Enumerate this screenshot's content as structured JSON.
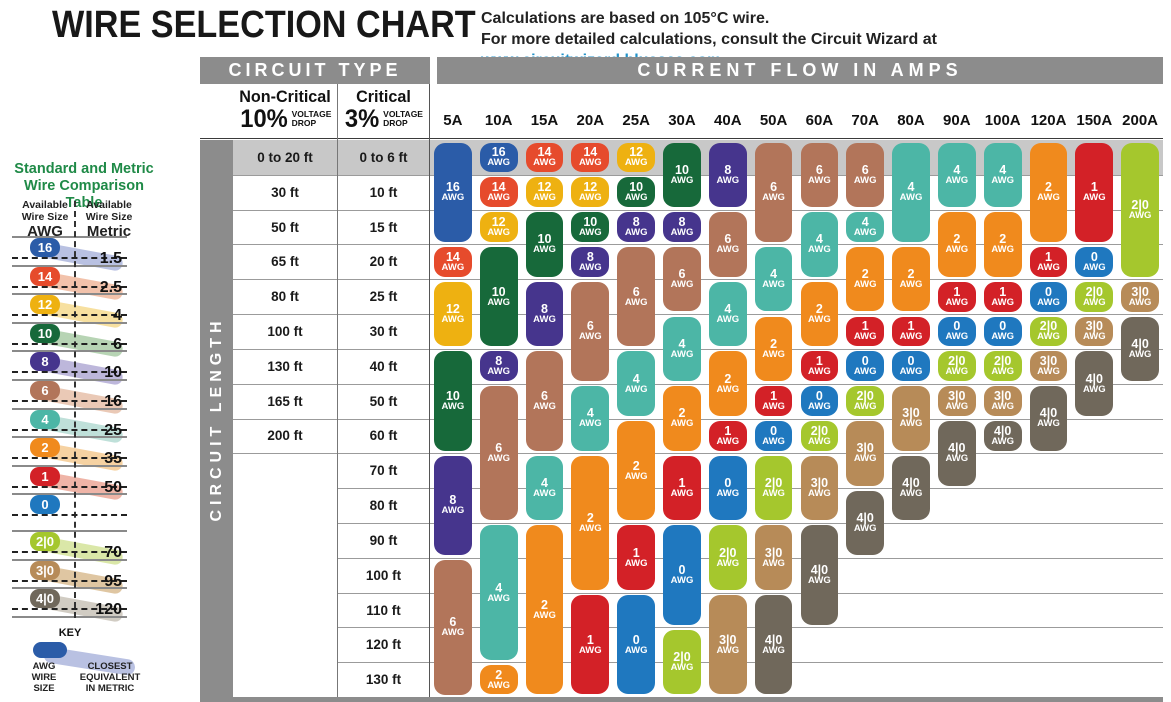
{
  "header": {
    "title": "WIRE SELECTION CHART",
    "note_line1": "Calculations are based on 105°C wire.",
    "note_line2": "For more detailed calculations, consult the Circuit Wizard at ",
    "link_text": "www.circuitwizard.bluesea.com",
    "link_color": "#2292c8"
  },
  "circuit_type": {
    "label": "CIRCUIT TYPE",
    "non_critical": {
      "name": "Non-Critical",
      "percent": "10%",
      "drop_line1": "VOLTAGE",
      "drop_line2": "DROP"
    },
    "critical": {
      "name": "Critical",
      "percent": "3%",
      "drop_line1": "VOLTAGE",
      "drop_line2": "DROP"
    }
  },
  "current_flow": {
    "label": "CURRENT FLOW IN AMPS"
  },
  "circuit_length": {
    "label": "CIRCUIT LENGTH"
  },
  "sidebar": {
    "title_line1": "Standard and Metric",
    "title_line2": "Wire Comparison Table",
    "col_awg": {
      "line1": "Available",
      "line2": "Wire Size",
      "unit": "AWG"
    },
    "col_metric": {
      "line1": "Available",
      "line2": "Wire Size",
      "unit": "Metric"
    },
    "rows": [
      {
        "awg": "16",
        "metric": "1.5",
        "color": "#2b5ca8",
        "tint": "#b9c1e2"
      },
      {
        "awg": "14",
        "metric": "2.5",
        "color": "#e64b2c",
        "tint": "#f2c2ab"
      },
      {
        "awg": "12",
        "metric": "4",
        "color": "#eeb111",
        "tint": "#f7e0a0"
      },
      {
        "awg": "10",
        "metric": "6",
        "color": "#17693a",
        "tint": "#b7d4b4"
      },
      {
        "awg": "8",
        "metric": "10",
        "color": "#46358d",
        "tint": "#bdb7db"
      },
      {
        "awg": "6",
        "metric": "16",
        "color": "#b2755a",
        "tint": "#eac9b6"
      },
      {
        "awg": "4",
        "metric": "25",
        "color": "#4cb6a6",
        "tint": "#bfe0d9"
      },
      {
        "awg": "2",
        "metric": "35",
        "color": "#f08a1d",
        "tint": "#f6d2a2"
      },
      {
        "awg": "1",
        "metric": "50",
        "color": "#d32127",
        "tint": "#efb4a7"
      },
      {
        "awg": "0",
        "metric": "",
        "color": "#1f78bf",
        "tint": ""
      },
      {
        "awg": "2|0",
        "metric": "70",
        "color": "#a5c72d",
        "tint": "#dae7a8"
      },
      {
        "awg": "3|0",
        "metric": "95",
        "color": "#b78b58",
        "tint": "#dfc6a2"
      },
      {
        "awg": "4|0",
        "metric": "120",
        "color": "#70685b",
        "tint": "#d1ccc3"
      }
    ],
    "key": {
      "label": "KEY",
      "pill_color": "#2b5ca8",
      "swoosh_color": "#b9c1e2",
      "awg_lines": [
        "AWG",
        "WIRE",
        "SIZE"
      ],
      "metric_lines": [
        "CLOSEST",
        "EQUIVALENT",
        "IN METRIC"
      ]
    }
  },
  "chart_data": {
    "type": "table",
    "title": "WIRE SELECTION CHART",
    "unit_suffix": "AWG",
    "awg_colors": {
      "16": "#2b5ca8",
      "14": "#e64b2c",
      "12": "#eeb111",
      "10": "#17693a",
      "8": "#46358d",
      "6": "#b2755a",
      "4": "#4cb6a6",
      "2": "#f08a1d",
      "1": "#d32127",
      "0": "#1f78bf",
      "2|0": "#a5c72d",
      "3|0": "#b78b58",
      "4|0": "#70685b"
    },
    "length_rows": [
      {
        "non_critical": "0 to 20 ft",
        "critical": "0 to 6 ft"
      },
      {
        "non_critical": "30 ft",
        "critical": "10 ft"
      },
      {
        "non_critical": "50 ft",
        "critical": "15 ft"
      },
      {
        "non_critical": "65 ft",
        "critical": "20 ft"
      },
      {
        "non_critical": "80 ft",
        "critical": "25 ft"
      },
      {
        "non_critical": "100 ft",
        "critical": "30 ft"
      },
      {
        "non_critical": "130 ft",
        "critical": "40 ft"
      },
      {
        "non_critical": "165 ft",
        "critical": "50 ft"
      },
      {
        "non_critical": "200 ft",
        "critical": "60 ft"
      },
      {
        "non_critical": "",
        "critical": "70 ft"
      },
      {
        "non_critical": "",
        "critical": "80 ft"
      },
      {
        "non_critical": "",
        "critical": "90 ft"
      },
      {
        "non_critical": "",
        "critical": "100 ft"
      },
      {
        "non_critical": "",
        "critical": "110 ft"
      },
      {
        "non_critical": "",
        "critical": "120 ft"
      },
      {
        "non_critical": "",
        "critical": "130 ft"
      }
    ],
    "amp_columns": [
      "5A",
      "10A",
      "15A",
      "20A",
      "25A",
      "30A",
      "40A",
      "50A",
      "60A",
      "70A",
      "80A",
      "90A",
      "100A",
      "120A",
      "150A",
      "200A"
    ],
    "columns": [
      {
        "amp": "5A",
        "segments": [
          [
            "16",
            0,
            2
          ],
          [
            "14",
            3,
            3
          ],
          [
            "12",
            4,
            5
          ],
          [
            "10",
            6,
            8
          ],
          [
            "8",
            9,
            11
          ],
          [
            "6",
            12,
            15
          ]
        ]
      },
      {
        "amp": "10A",
        "segments": [
          [
            "16",
            0,
            0
          ],
          [
            "14",
            1,
            1
          ],
          [
            "12",
            2,
            2
          ],
          [
            "10",
            3,
            5
          ],
          [
            "8",
            6,
            6
          ],
          [
            "6",
            7,
            10
          ],
          [
            "4",
            11,
            14
          ],
          [
            "2",
            15,
            15
          ]
        ]
      },
      {
        "amp": "15A",
        "segments": [
          [
            "14",
            0,
            0
          ],
          [
            "12",
            1,
            1
          ],
          [
            "10",
            2,
            3
          ],
          [
            "8",
            4,
            5
          ],
          [
            "6",
            6,
            8
          ],
          [
            "4",
            9,
            10
          ],
          [
            "2",
            11,
            15
          ]
        ]
      },
      {
        "amp": "20A",
        "segments": [
          [
            "14",
            0,
            0
          ],
          [
            "12",
            1,
            1
          ],
          [
            "10",
            2,
            2
          ],
          [
            "8",
            3,
            3
          ],
          [
            "6",
            4,
            6
          ],
          [
            "4",
            7,
            8
          ],
          [
            "2",
            9,
            12
          ],
          [
            "1",
            13,
            15
          ]
        ]
      },
      {
        "amp": "25A",
        "segments": [
          [
            "12",
            0,
            0
          ],
          [
            "10",
            1,
            1
          ],
          [
            "8",
            2,
            2
          ],
          [
            "6",
            3,
            5
          ],
          [
            "4",
            6,
            7
          ],
          [
            "2",
            8,
            10
          ],
          [
            "1",
            11,
            12
          ],
          [
            "0",
            13,
            15
          ]
        ]
      },
      {
        "amp": "30A",
        "segments": [
          [
            "10",
            0,
            1
          ],
          [
            "8",
            2,
            2
          ],
          [
            "6",
            3,
            4
          ],
          [
            "4",
            5,
            6
          ],
          [
            "2",
            7,
            8
          ],
          [
            "1",
            9,
            10
          ],
          [
            "0",
            11,
            13
          ],
          [
            "2|0",
            14,
            15
          ]
        ]
      },
      {
        "amp": "40A",
        "segments": [
          [
            "8",
            0,
            1
          ],
          [
            "6",
            2,
            3
          ],
          [
            "4",
            4,
            5
          ],
          [
            "2",
            6,
            7
          ],
          [
            "1",
            8,
            8
          ],
          [
            "0",
            9,
            10
          ],
          [
            "2|0",
            11,
            12
          ],
          [
            "3|0",
            13,
            15
          ]
        ]
      },
      {
        "amp": "50A",
        "segments": [
          [
            "6",
            0,
            2
          ],
          [
            "4",
            3,
            4
          ],
          [
            "2",
            5,
            6
          ],
          [
            "1",
            7,
            7
          ],
          [
            "0",
            8,
            8
          ],
          [
            "2|0",
            9,
            10
          ],
          [
            "3|0",
            11,
            12
          ],
          [
            "4|0",
            13,
            15
          ]
        ]
      },
      {
        "amp": "60A",
        "segments": [
          [
            "6",
            0,
            1
          ],
          [
            "4",
            2,
            3
          ],
          [
            "2",
            4,
            5
          ],
          [
            "1",
            6,
            6
          ],
          [
            "0",
            7,
            7
          ],
          [
            "2|0",
            8,
            8
          ],
          [
            "3|0",
            9,
            10
          ],
          [
            "4|0",
            11,
            13
          ]
        ]
      },
      {
        "amp": "70A",
        "segments": [
          [
            "6",
            0,
            1
          ],
          [
            "4",
            2,
            2
          ],
          [
            "2",
            3,
            4
          ],
          [
            "1",
            5,
            5
          ],
          [
            "0",
            6,
            6
          ],
          [
            "2|0",
            7,
            7
          ],
          [
            "3|0",
            8,
            9
          ],
          [
            "4|0",
            10,
            11
          ]
        ]
      },
      {
        "amp": "80A",
        "segments": [
          [
            "4",
            0,
            2
          ],
          [
            "2",
            3,
            4
          ],
          [
            "1",
            5,
            5
          ],
          [
            "0",
            6,
            6
          ],
          [
            "3|0",
            7,
            8
          ],
          [
            "4|0",
            9,
            10
          ]
        ]
      },
      {
        "amp": "90A",
        "segments": [
          [
            "4",
            0,
            1
          ],
          [
            "2",
            2,
            3
          ],
          [
            "1",
            4,
            4
          ],
          [
            "0",
            5,
            5
          ],
          [
            "2|0",
            6,
            6
          ],
          [
            "3|0",
            7,
            7
          ],
          [
            "4|0",
            8,
            9
          ]
        ]
      },
      {
        "amp": "100A",
        "segments": [
          [
            "4",
            0,
            1
          ],
          [
            "2",
            2,
            3
          ],
          [
            "1",
            4,
            4
          ],
          [
            "0",
            5,
            5
          ],
          [
            "2|0",
            6,
            6
          ],
          [
            "3|0",
            7,
            7
          ],
          [
            "4|0",
            8,
            8
          ]
        ]
      },
      {
        "amp": "120A",
        "segments": [
          [
            "2",
            0,
            2
          ],
          [
            "1",
            3,
            3
          ],
          [
            "0",
            4,
            4
          ],
          [
            "2|0",
            5,
            5
          ],
          [
            "3|0",
            6,
            6
          ],
          [
            "4|0",
            7,
            8
          ]
        ]
      },
      {
        "amp": "150A",
        "segments": [
          [
            "1",
            0,
            2
          ],
          [
            "0",
            3,
            3
          ],
          [
            "2|0",
            4,
            4
          ],
          [
            "3|0",
            5,
            5
          ],
          [
            "4|0",
            6,
            7
          ]
        ]
      },
      {
        "amp": "200A",
        "segments": [
          [
            "2|0",
            0,
            3
          ],
          [
            "3|0",
            4,
            4
          ],
          [
            "4|0",
            5,
            6
          ]
        ]
      }
    ]
  }
}
